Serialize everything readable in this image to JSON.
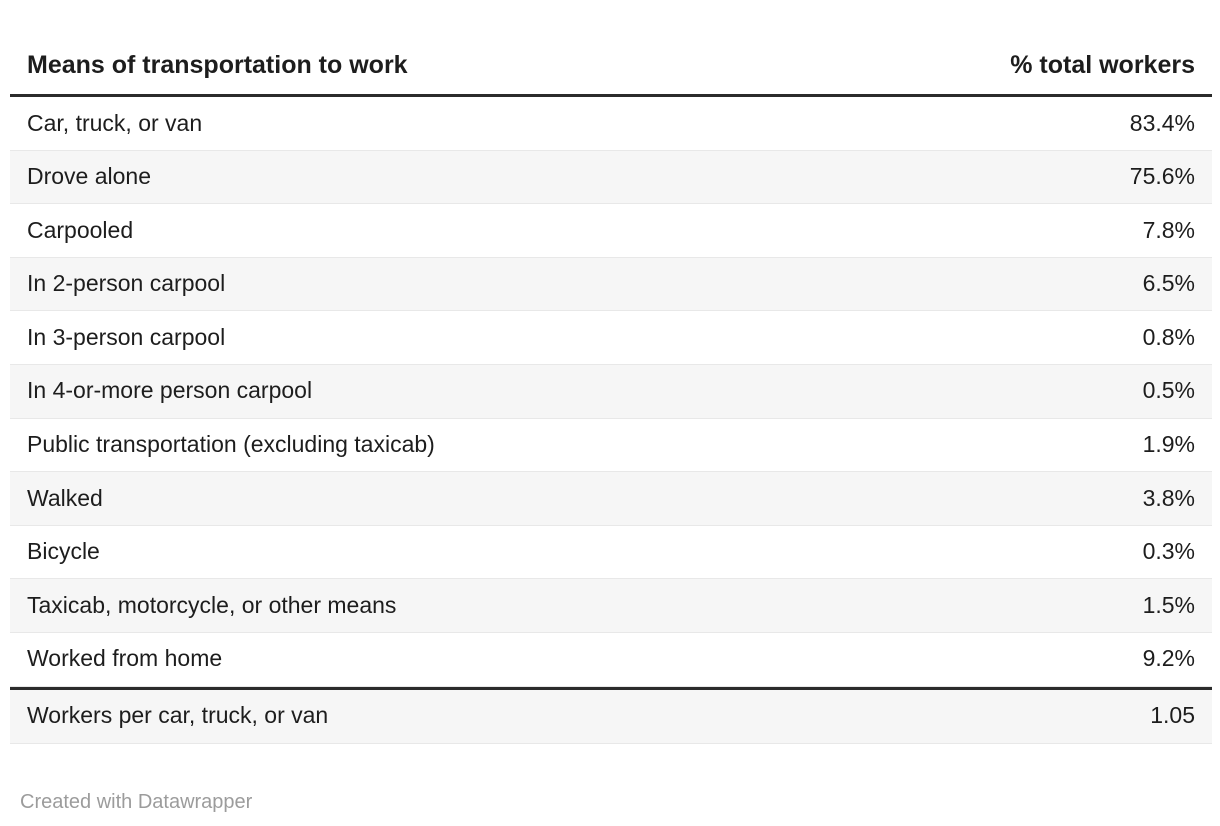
{
  "chart_data": {
    "type": "table",
    "title": "Means of transportation to work",
    "columns": [
      "Means of transportation to work",
      "% total workers"
    ],
    "rows": [
      {
        "label": "Car, truck, or van",
        "value": "83.4%"
      },
      {
        "label": "Drove alone",
        "value": "75.6%"
      },
      {
        "label": "Carpooled",
        "value": "7.8%"
      },
      {
        "label": "In 2-person carpool",
        "value": "6.5%"
      },
      {
        "label": "In 3-person carpool",
        "value": "0.8%"
      },
      {
        "label": "In 4-or-more person carpool",
        "value": "0.5%"
      },
      {
        "label": "Public transportation (excluding taxicab)",
        "value": "1.9%"
      },
      {
        "label": "Walked",
        "value": "3.8%"
      },
      {
        "label": "Bicycle",
        "value": "0.3%"
      },
      {
        "label": "Taxicab, motorcycle, or other means",
        "value": "1.5%"
      },
      {
        "label": "Worked from home",
        "value": "9.2%"
      }
    ],
    "summary_row": {
      "label": "Workers per car, truck, or van",
      "value": "1.05"
    },
    "layout": {
      "striped_rows": "even",
      "value_alignment": "right"
    }
  },
  "footer": {
    "attribution": "Created with Datawrapper"
  },
  "colors": {
    "page-bg": "#ffffff",
    "text": "#1d1d1d",
    "rule": "#2b2b2b",
    "separator": "#e8e8e8",
    "stripe": "#f6f6f6",
    "attribution": "#9c9c9c"
  }
}
